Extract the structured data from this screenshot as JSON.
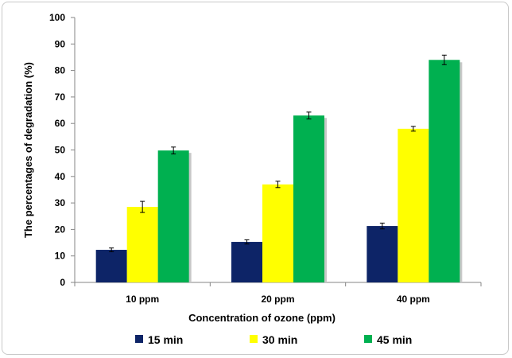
{
  "chart_data": {
    "type": "bar",
    "title": "",
    "xlabel": "Concentration of ozone (ppm)",
    "ylabel": "The percentages of degradation (%)",
    "categories": [
      "10 ppm",
      "20 ppm",
      "40 ppm"
    ],
    "ylim": [
      0,
      100
    ],
    "yticks": [
      0,
      10,
      20,
      30,
      40,
      50,
      60,
      70,
      80,
      90,
      100
    ],
    "grid": false,
    "legend_position": "bottom",
    "series": [
      {
        "name": "15 min",
        "color": "#0d2467",
        "values": [
          12.3,
          15.3,
          21.3
        ],
        "errors": [
          0.7,
          0.8,
          1.1
        ]
      },
      {
        "name": "30 min",
        "color": "#ffff00",
        "values": [
          28.5,
          37.0,
          58.0
        ],
        "errors": [
          2.1,
          1.2,
          0.9
        ]
      },
      {
        "name": "45 min",
        "color": "#00b050",
        "values": [
          49.8,
          63.0,
          84.0
        ],
        "errors": [
          1.3,
          1.3,
          1.8
        ]
      }
    ]
  }
}
